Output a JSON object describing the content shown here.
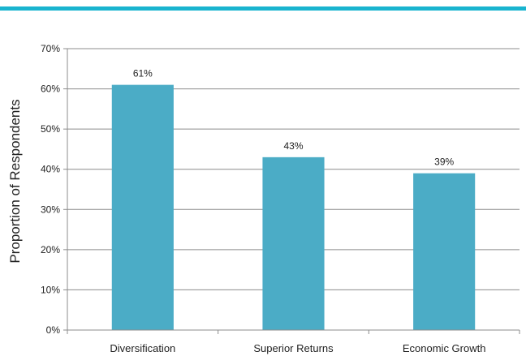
{
  "colors": {
    "accent_bar": "#19b4cf",
    "bar_fill": "#4bacc6",
    "grid": "#8c8c8c",
    "axis": "#8c8c8c"
  },
  "chart_data": {
    "type": "bar",
    "categories": [
      "Diversification",
      "Superior Returns",
      "Economic Growth"
    ],
    "values": [
      61,
      43,
      39
    ],
    "data_labels": [
      "61%",
      "43%",
      "39%"
    ],
    "title": "",
    "xlabel": "",
    "ylabel": "Proportion of Respondents",
    "ylim": [
      0,
      70
    ],
    "yticks": [
      0,
      10,
      20,
      30,
      40,
      50,
      60,
      70
    ],
    "ytick_labels": [
      "0%",
      "10%",
      "20%",
      "30%",
      "40%",
      "50%",
      "60%",
      "70%"
    ],
    "grid": true,
    "legend": "none"
  }
}
